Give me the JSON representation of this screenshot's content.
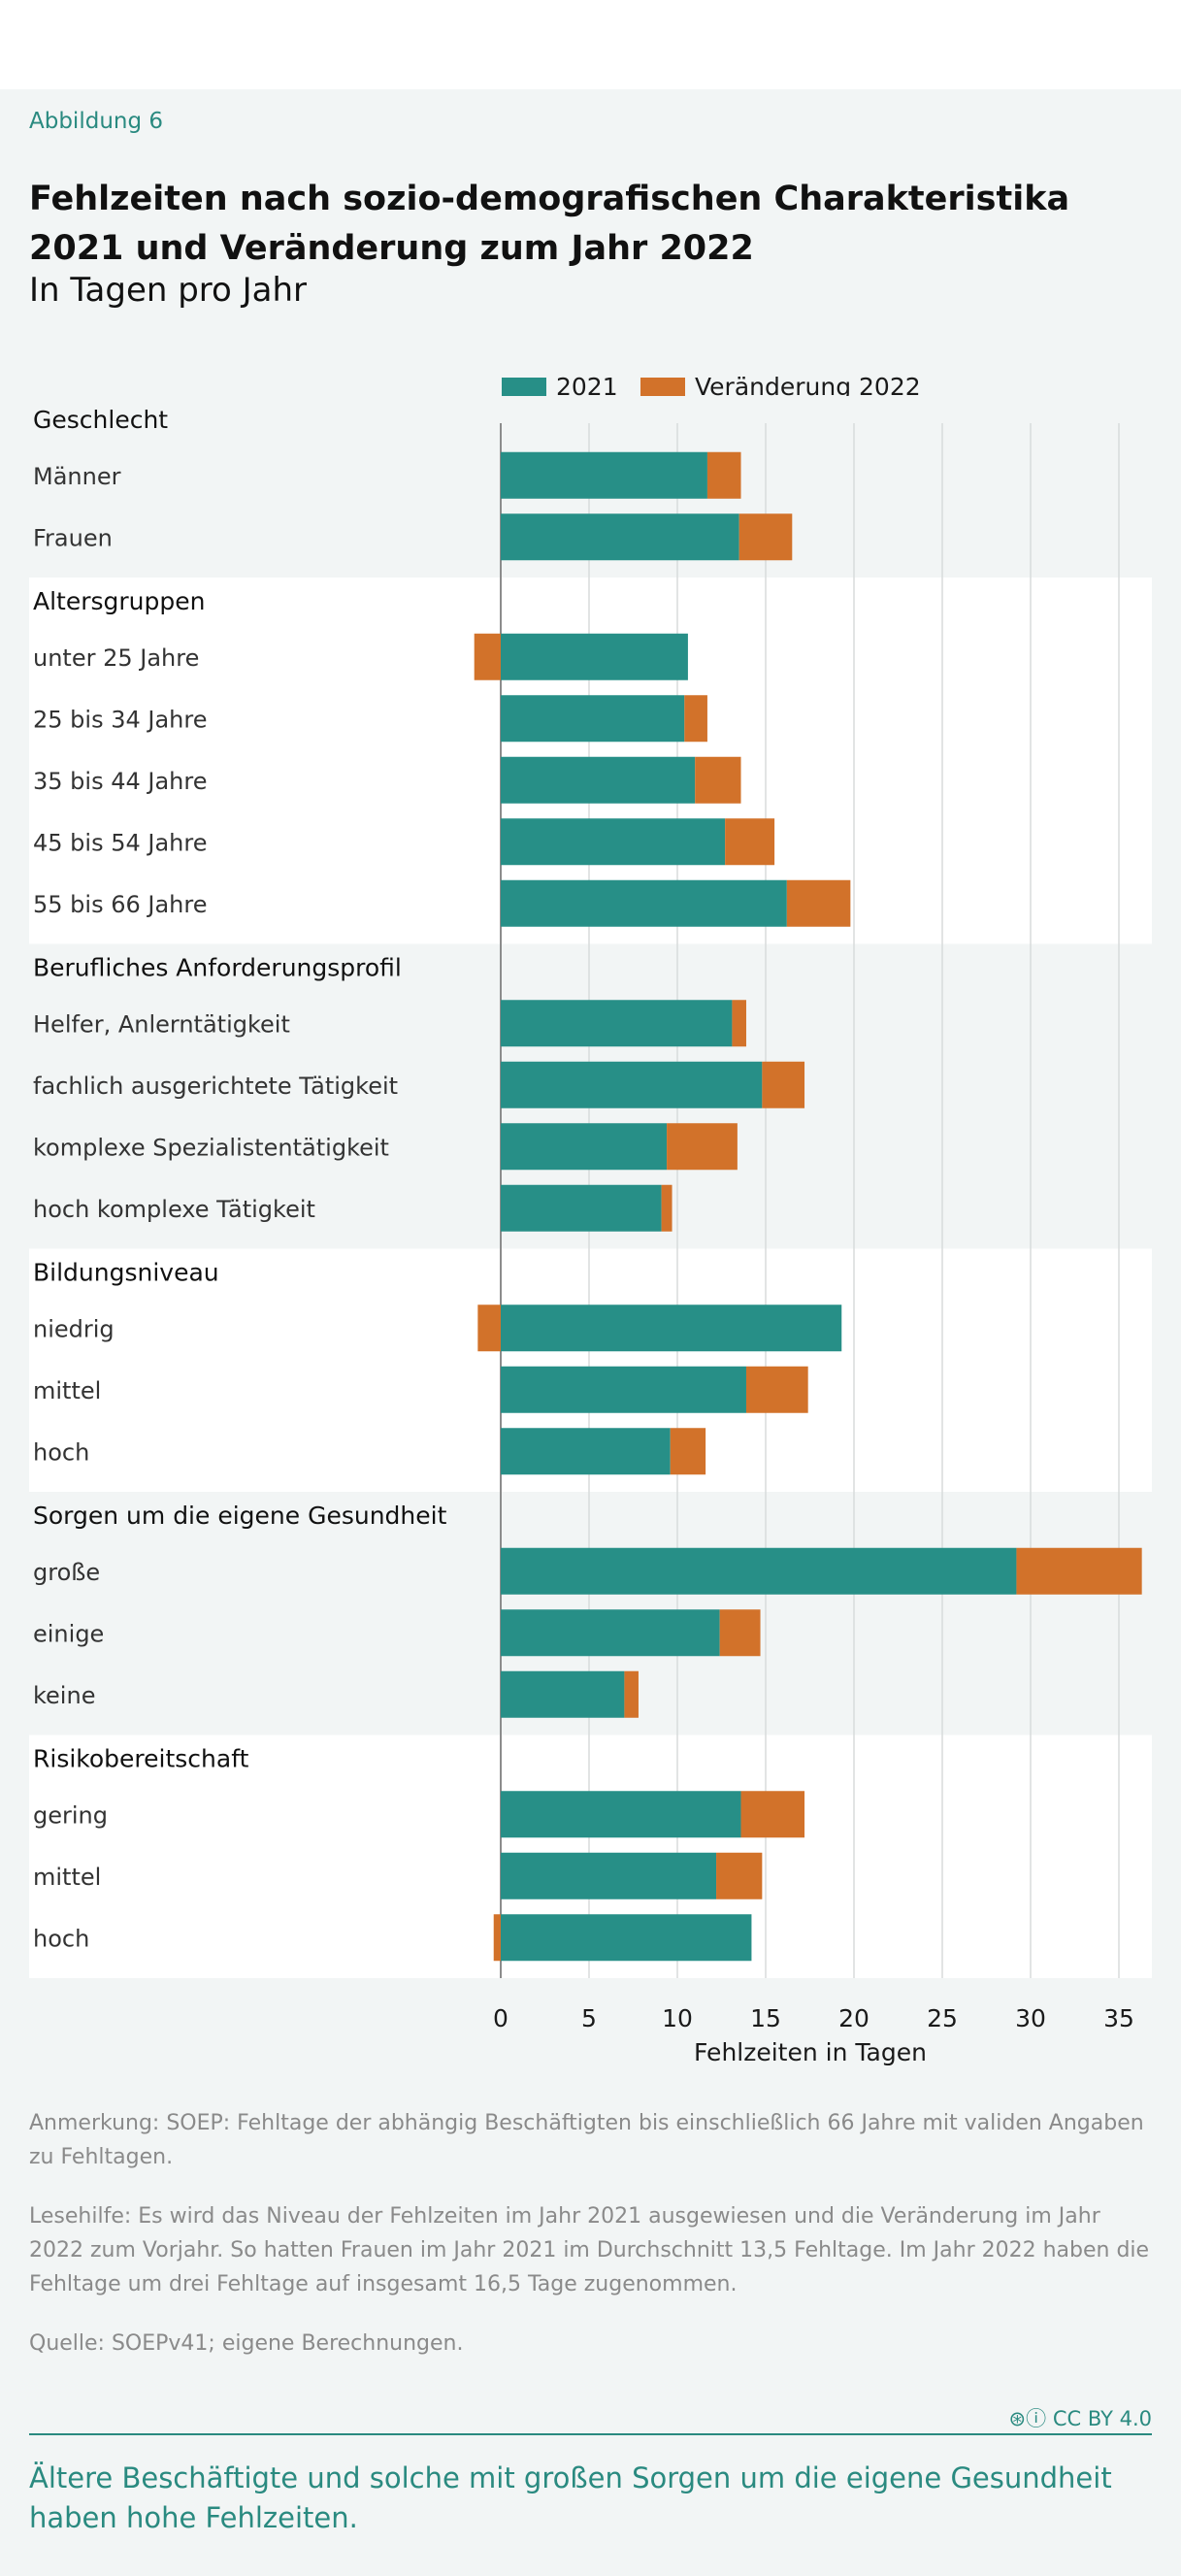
{
  "figure_label": "Abbildung 6",
  "title": "Fehlzeiten nach sozio-demografischen Charakteristika 2021 und Veränderung zum Jahr 2022",
  "subtitle": "In Tagen pro Jahr",
  "legend": {
    "series_2021": "2021",
    "series_change": "Veränderung 2022"
  },
  "colors": {
    "base": "#278f87",
    "change": "#d2722a",
    "accent": "#2a8a80"
  },
  "chart_data": {
    "type": "bar",
    "orientation": "horizontal",
    "stacked": true,
    "xlabel": "Fehlzeiten in Tagen",
    "xlim": [
      -1.5,
      37
    ],
    "xticks": [
      0,
      5,
      10,
      15,
      20,
      25,
      30,
      35
    ],
    "grid": true,
    "legend_position": "top",
    "series": [
      {
        "name": "2021",
        "color": "#278f87"
      },
      {
        "name": "Veränderung 2022",
        "color": "#d2722a"
      }
    ],
    "groups": [
      {
        "label": "Geschlecht",
        "rows": [
          {
            "label": "Männer",
            "base": 11.7,
            "change": 1.9
          },
          {
            "label": "Frauen",
            "base": 13.5,
            "change": 3.0
          }
        ]
      },
      {
        "label": "Altersgruppen",
        "rows": [
          {
            "label": "unter 25 Jahre",
            "base": 10.6,
            "change": -1.5
          },
          {
            "label": "25 bis 34 Jahre",
            "base": 10.4,
            "change": 1.3
          },
          {
            "label": "35 bis 44 Jahre",
            "base": 11.0,
            "change": 2.6
          },
          {
            "label": "45 bis 54 Jahre",
            "base": 12.7,
            "change": 2.8
          },
          {
            "label": "55 bis 66 Jahre",
            "base": 16.2,
            "change": 3.6
          }
        ]
      },
      {
        "label": "Berufliches Anforderungsprofil",
        "rows": [
          {
            "label": "Helfer, Anlerntätigkeit",
            "base": 13.1,
            "change": 0.8
          },
          {
            "label": "fachlich ausgerichtete Tätigkeit",
            "base": 14.8,
            "change": 2.4
          },
          {
            "label": "komplexe Spezialistentätigkeit",
            "base": 9.4,
            "change": 4.0
          },
          {
            "label": "hoch komplexe Tätigkeit",
            "base": 9.1,
            "change": 0.6
          }
        ]
      },
      {
        "label": "Bildungsniveau",
        "rows": [
          {
            "label": "niedrig",
            "base": 19.3,
            "change": -1.3
          },
          {
            "label": "mittel",
            "base": 13.9,
            "change": 3.5
          },
          {
            "label": "hoch",
            "base": 9.6,
            "change": 2.0
          }
        ]
      },
      {
        "label": "Sorgen um die eigene Gesundheit",
        "rows": [
          {
            "label": "große",
            "base": 29.2,
            "change": 7.1
          },
          {
            "label": "einige",
            "base": 12.4,
            "change": 2.3
          },
          {
            "label": "keine",
            "base": 7.0,
            "change": 0.8
          }
        ]
      },
      {
        "label": "Risikobereitschaft",
        "rows": [
          {
            "label": "gering",
            "base": 13.6,
            "change": 3.6
          },
          {
            "label": "mittel",
            "base": 12.2,
            "change": 2.6
          },
          {
            "label": "hoch",
            "base": 14.2,
            "change": -0.4
          }
        ]
      }
    ]
  },
  "notes": {
    "anmerkung": "Anmerkung: SOEP: Fehltage der abhängig Beschäftigten bis einschließlich 66 Jahre mit validen Angaben zu Fehltagen.",
    "lesehilfe": "Lesehilfe: Es wird das Niveau der Fehlzeiten im Jahr 2021 ausgewiesen und die Veränderung im Jahr 2022 zum Vorjahr. So hatten Frauen im Jahr 2021 im Durchschnitt 13,5 Fehltage. Im Jahr 2022 haben die Fehltage um drei Fehltage auf insgesamt 16,5 Tage zugenommen.",
    "quelle": "Quelle: SOEPv41; eigene Berechnungen."
  },
  "license": "CC BY 4.0",
  "takeaway": "Ältere Beschäftigte und solche mit großen Sorgen um die eigene Gesundheit haben hohe Fehlzeiten."
}
